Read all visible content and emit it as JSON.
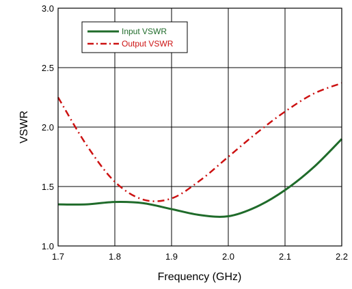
{
  "chart_data": {
    "type": "line",
    "xlabel": "Frequency (GHz)",
    "ylabel": "VSWR",
    "xlim": [
      1.7,
      2.2
    ],
    "ylim": [
      1.0,
      3.0
    ],
    "x_ticks": [
      "1.7",
      "1.8",
      "1.9",
      "2.0",
      "2.1",
      "2.2"
    ],
    "y_ticks": [
      "1.0",
      "1.5",
      "2.0",
      "2.5",
      "3.0"
    ],
    "grid": true,
    "legend_position": "top-left",
    "series": [
      {
        "name": "Input VSWR",
        "color": "#1f6b2a",
        "dash": "solid",
        "x": [
          1.7,
          1.75,
          1.8,
          1.85,
          1.9,
          1.95,
          2.0,
          2.05,
          2.1,
          2.15,
          2.2
        ],
        "y": [
          1.35,
          1.35,
          1.37,
          1.36,
          1.31,
          1.26,
          1.25,
          1.33,
          1.47,
          1.66,
          1.9
        ]
      },
      {
        "name": "Output VSWR",
        "color": "#cc1111",
        "dash": "dashdot",
        "x": [
          1.7,
          1.75,
          1.8,
          1.85,
          1.9,
          1.95,
          2.0,
          2.05,
          2.1,
          2.15,
          2.2
        ],
        "y": [
          2.25,
          1.85,
          1.54,
          1.39,
          1.4,
          1.55,
          1.75,
          1.95,
          2.13,
          2.28,
          2.37
        ]
      }
    ]
  }
}
